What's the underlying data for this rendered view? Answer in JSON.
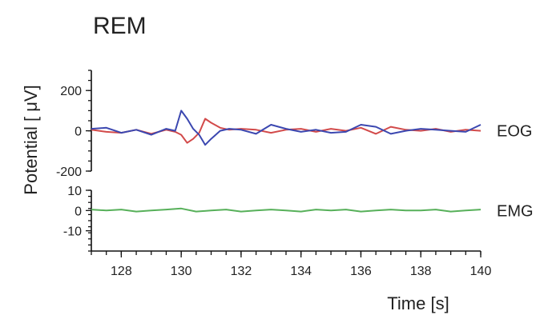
{
  "chart_data": {
    "type": "line",
    "title": "REM",
    "xlabel": "Time  [s]",
    "ylabel": "Potential  [  μV]",
    "x_range": [
      127,
      140
    ],
    "x_ticks": [
      128,
      130,
      132,
      134,
      136,
      138,
      140
    ],
    "x_tick_labels": [
      "128",
      "130",
      "132",
      "134",
      "136",
      "138",
      "140"
    ],
    "grid": false,
    "panels": [
      {
        "channel": "EOG",
        "ylim": [
          -200,
          300
        ],
        "y_ticks": [
          200,
          0,
          -200
        ],
        "y_tick_labels": [
          "200",
          "0",
          "-200"
        ],
        "series": [
          {
            "color": "#d24a4a",
            "x": [
              127.0,
              127.5,
              128.0,
              128.5,
              129.0,
              129.5,
              129.8,
              130.0,
              130.2,
              130.4,
              130.6,
              130.8,
              131.0,
              131.3,
              131.6,
              132.0,
              132.5,
              133.0,
              133.5,
              134.0,
              134.5,
              135.0,
              135.5,
              136.0,
              136.5,
              137.0,
              137.5,
              138.0,
              138.5,
              139.0,
              139.5,
              140.0
            ],
            "y": [
              5,
              -5,
              -10,
              5,
              -15,
              5,
              -5,
              -20,
              -60,
              -40,
              -10,
              60,
              40,
              15,
              5,
              10,
              5,
              -10,
              5,
              10,
              -5,
              10,
              0,
              15,
              -15,
              20,
              5,
              0,
              10,
              -5,
              5,
              0
            ]
          },
          {
            "color": "#3b47b0",
            "x": [
              127.0,
              127.5,
              128.0,
              128.5,
              129.0,
              129.5,
              129.8,
              130.0,
              130.2,
              130.4,
              130.6,
              130.8,
              131.0,
              131.3,
              131.6,
              132.0,
              132.5,
              133.0,
              133.5,
              134.0,
              134.5,
              135.0,
              135.5,
              136.0,
              136.5,
              137.0,
              137.5,
              138.0,
              138.5,
              139.0,
              139.5,
              140.0
            ],
            "y": [
              10,
              15,
              -10,
              5,
              -20,
              10,
              0,
              100,
              60,
              10,
              -20,
              -70,
              -40,
              0,
              10,
              5,
              -15,
              30,
              10,
              -5,
              5,
              -10,
              -5,
              30,
              20,
              -15,
              0,
              10,
              5,
              0,
              -5,
              30
            ]
          }
        ]
      },
      {
        "channel": "EMG",
        "ylim": [
          -20,
          10
        ],
        "y_ticks": [
          10,
          0,
          -10
        ],
        "y_tick_labels": [
          "10",
          "0",
          "-10"
        ],
        "series": [
          {
            "color": "#57b05a",
            "x": [
              127.0,
              127.5,
              128.0,
              128.5,
              129.0,
              129.5,
              130.0,
              130.5,
              131.0,
              131.5,
              132.0,
              132.5,
              133.0,
              133.5,
              134.0,
              134.5,
              135.0,
              135.5,
              136.0,
              136.5,
              137.0,
              137.5,
              138.0,
              138.5,
              139.0,
              139.5,
              140.0
            ],
            "y": [
              0.5,
              0,
              0.5,
              -0.5,
              0,
              0.5,
              1,
              -0.5,
              0,
              0.5,
              -0.5,
              0,
              0.5,
              0,
              -0.5,
              0.5,
              0,
              0.5,
              -0.5,
              0,
              0.5,
              0,
              0,
              0.5,
              -0.5,
              0,
              0.5
            ]
          }
        ]
      }
    ]
  }
}
